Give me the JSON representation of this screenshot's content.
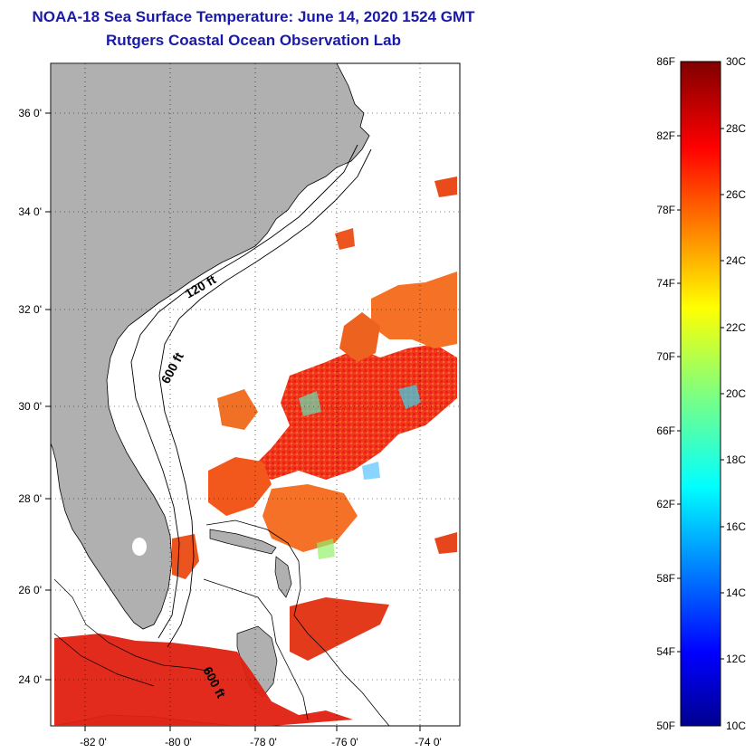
{
  "title": {
    "line1": "NOAA-18 Sea Surface Temperature:  June 14, 2020 1524 GMT",
    "line2": "Rutgers Coastal Ocean Observation Lab"
  },
  "map": {
    "lon_ticks": [
      "-82 0'",
      "-80 0'",
      "-78 0'",
      "-76 0'",
      "-74 0'"
    ],
    "lat_ticks": [
      "36 0'",
      "34 0'",
      "32 0'",
      "30 0'",
      "28 0'",
      "26 0'",
      "24 0'"
    ],
    "contour_labels": [
      "120 ft",
      "600 ft",
      "600 ft"
    ],
    "land_color": "#b0b0b0",
    "ocean_color": "#ffffff"
  },
  "colorbar": {
    "fahrenheit_labels": [
      "86F",
      "82F",
      "78F",
      "74F",
      "70F",
      "66F",
      "62F",
      "58F",
      "54F",
      "50F"
    ],
    "celsius_labels": [
      "30C",
      "28C",
      "26C",
      "24C",
      "22C",
      "20C",
      "18C",
      "16C",
      "14C",
      "12C",
      "10C"
    ],
    "colormap": "jet"
  }
}
